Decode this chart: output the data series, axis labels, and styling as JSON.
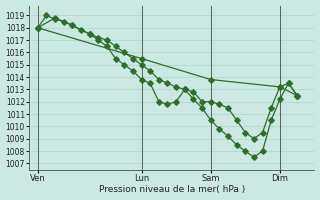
{
  "background_color": "#cce8e2",
  "grid_color": "#aad4cc",
  "line_color": "#2d6e2d",
  "marker_color": "#2d6e2d",
  "xlabel": "Pression niveau de la mer( hPa )",
  "ylim_min": 1006.5,
  "ylim_max": 1019.8,
  "yticks": [
    1007,
    1008,
    1009,
    1010,
    1011,
    1012,
    1013,
    1014,
    1015,
    1016,
    1017,
    1018,
    1019
  ],
  "xtick_labels": [
    "Ven",
    "Lun",
    "Sam",
    "Dim"
  ],
  "xtick_positions": [
    0,
    12,
    20,
    28
  ],
  "xlim_min": -1,
  "xlim_max": 32,
  "series_A_x": [
    0,
    1,
    2,
    3,
    4,
    5,
    6,
    7,
    8,
    9,
    10,
    11,
    12,
    13,
    14,
    15,
    16,
    17,
    18,
    19,
    20,
    21,
    22,
    23,
    24,
    25,
    26,
    27,
    28,
    29,
    30
  ],
  "series_A_y": [
    1018.0,
    1019.0,
    1018.7,
    1018.5,
    1018.2,
    1017.8,
    1017.5,
    1017.2,
    1017.0,
    1016.5,
    1016.0,
    1015.5,
    1015.0,
    1014.5,
    1013.8,
    1013.5,
    1013.2,
    1013.0,
    1012.8,
    1012.0,
    1012.0,
    1011.8,
    1011.5,
    1010.5,
    1009.5,
    1009.0,
    1009.5,
    1011.5,
    1013.2,
    1013.5,
    1012.5
  ],
  "series_B_x": [
    0,
    2,
    4,
    6,
    7,
    8,
    9,
    10,
    11,
    12,
    13,
    14,
    15,
    16,
    17,
    18,
    19,
    20,
    21,
    22,
    23,
    24,
    25,
    26,
    27,
    28,
    29,
    30
  ],
  "series_B_y": [
    1018.0,
    1018.8,
    1018.2,
    1017.5,
    1017.0,
    1016.5,
    1015.5,
    1015.0,
    1014.5,
    1013.8,
    1013.5,
    1012.0,
    1011.8,
    1012.0,
    1013.0,
    1012.2,
    1011.5,
    1010.5,
    1009.8,
    1009.2,
    1008.5,
    1008.0,
    1007.5,
    1008.0,
    1010.5,
    1012.2,
    1013.5,
    1012.5
  ],
  "series_C_x": [
    0,
    12,
    20,
    28,
    30
  ],
  "series_C_y": [
    1018.0,
    1015.5,
    1013.8,
    1013.2,
    1012.5
  ]
}
